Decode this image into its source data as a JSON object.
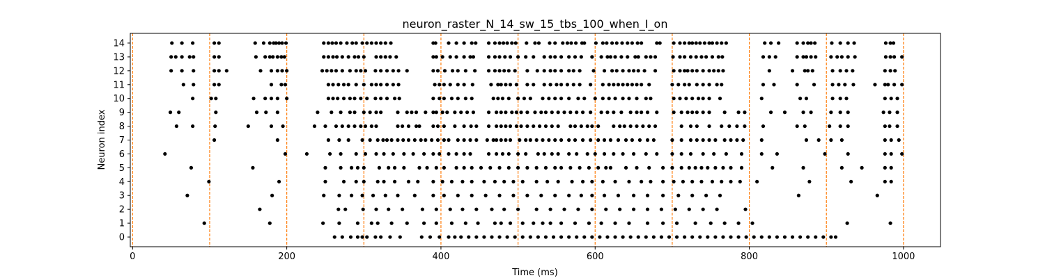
{
  "chart_data": {
    "type": "scatter",
    "title": "neuron_raster_N_14_sw_15_tbs_100_when_I_on",
    "xlabel": "Time (ms)",
    "ylabel": "Neuron index",
    "xlim": [
      -3,
      1048
    ],
    "ylim": [
      -0.7,
      14.7
    ],
    "x_ticks": [
      0,
      200,
      400,
      600,
      800,
      1000
    ],
    "y_ticks": [
      0,
      1,
      2,
      3,
      4,
      5,
      6,
      7,
      8,
      9,
      10,
      11,
      12,
      13,
      14
    ],
    "grid": false,
    "legend": "none",
    "colors": {
      "spike": "#000000",
      "marker_line": "#ff7f0e"
    },
    "vertical_markers": [
      0,
      100,
      200,
      300,
      400,
      500,
      600,
      700,
      800,
      900,
      1000
    ],
    "series": [
      {
        "neuron": 14,
        "spike_times": [
          51,
          64,
          78,
          106,
          112,
          159,
          170,
          178,
          183,
          186,
          190,
          194,
          199,
          248,
          254,
          259,
          264,
          270,
          278,
          285,
          290,
          298,
          304,
          310,
          316,
          322,
          328,
          335,
          390,
          393,
          410,
          420,
          430,
          440,
          445,
          462,
          470,
          476,
          481,
          486,
          492,
          497,
          511,
          522,
          527,
          541,
          548,
          558,
          564,
          569,
          575,
          583,
          586,
          601,
          610,
          615,
          622,
          628,
          635,
          642,
          648,
          655,
          660,
          680,
          684,
          702,
          710,
          716,
          722,
          726,
          731,
          736,
          742,
          748,
          752,
          758,
          764,
          770,
          820,
          828,
          838,
          862,
          870,
          876,
          880,
          885,
          907,
          918,
          928,
          936,
          977,
          983,
          987
        ]
      },
      {
        "neuron": 13,
        "spike_times": [
          50,
          56,
          64,
          74,
          79,
          106,
          112,
          160,
          172,
          178,
          182,
          188,
          193,
          197,
          248,
          254,
          260,
          265,
          272,
          280,
          288,
          293,
          300,
          316,
          322,
          328,
          334,
          342,
          390,
          394,
          402,
          412,
          420,
          430,
          438,
          442,
          462,
          470,
          476,
          483,
          490,
          500,
          510,
          520,
          534,
          542,
          548,
          556,
          566,
          574,
          582,
          596,
          608,
          616,
          620,
          626,
          634,
          642,
          652,
          656,
          666,
          672,
          678,
          701,
          710,
          716,
          724,
          731,
          738,
          744,
          752,
          760,
          765,
          818,
          826,
          834,
          862,
          870,
          874,
          880,
          886,
          906,
          914,
          920,
          928,
          937,
          977,
          983,
          988,
          998
        ]
      },
      {
        "neuron": 12,
        "spike_times": [
          50,
          64,
          79,
          106,
          112,
          122,
          166,
          180,
          188,
          194,
          200,
          246,
          252,
          258,
          264,
          272,
          282,
          290,
          296,
          302,
          315,
          322,
          330,
          338,
          345,
          356,
          390,
          396,
          405,
          415,
          422,
          432,
          444,
          462,
          470,
          476,
          482,
          488,
          496,
          512,
          525,
          534,
          542,
          548,
          556,
          566,
          572,
          580,
          598,
          612,
          622,
          628,
          636,
          644,
          650,
          656,
          664,
          678,
          702,
          710,
          716,
          720,
          726,
          732,
          740,
          748,
          754,
          760,
          766,
          826,
          856,
          872,
          876,
          882,
          908,
          918,
          926,
          934,
          976,
          983,
          989
        ]
      },
      {
        "neuron": 11,
        "spike_times": [
          66,
          79,
          106,
          112,
          180,
          193,
          198,
          254,
          260,
          267,
          274,
          280,
          290,
          300,
          310,
          316,
          322,
          330,
          338,
          345,
          392,
          398,
          404,
          412,
          422,
          430,
          441,
          465,
          474,
          478,
          484,
          490,
          498,
          512,
          520,
          534,
          542,
          550,
          556,
          564,
          572,
          580,
          594,
          610,
          618,
          624,
          630,
          636,
          642,
          648,
          654,
          660,
          670,
          700,
          708,
          716,
          722,
          732,
          740,
          748,
          758,
          764,
          818,
          832,
          862,
          884,
          908,
          916,
          924,
          935,
          963,
          976,
          980,
          988,
          998
        ]
      },
      {
        "neuron": 10,
        "spike_times": [
          78,
          102,
          108,
          157,
          172,
          180,
          188,
          200,
          254,
          260,
          266,
          274,
          282,
          288,
          296,
          304,
          315,
          322,
          330,
          340,
          346,
          390,
          398,
          404,
          414,
          422,
          432,
          440,
          468,
          474,
          480,
          488,
          500,
          508,
          516,
          532,
          540,
          548,
          556,
          566,
          578,
          586,
          600,
          610,
          618,
          626,
          636,
          644,
          654,
          666,
          672,
          702,
          710,
          718,
          726,
          734,
          740,
          748,
          762,
          816,
          866,
          874,
          908,
          918,
          926,
          976,
          984,
          992
        ]
      },
      {
        "neuron": 9,
        "spike_times": [
          49,
          60,
          108,
          161,
          173,
          188,
          240,
          258,
          270,
          282,
          288,
          300,
          308,
          316,
          322,
          344,
          356,
          362,
          368,
          380,
          390,
          394,
          402,
          408,
          418,
          426,
          434,
          442,
          462,
          472,
          478,
          484,
          492,
          498,
          504,
          512,
          522,
          530,
          536,
          544,
          552,
          560,
          568,
          576,
          584,
          594,
          608,
          616,
          624,
          634,
          646,
          654,
          660,
          668,
          680,
          702,
          712,
          720,
          726,
          732,
          740,
          748,
          768,
          786,
          794,
          828,
          846,
          870,
          880,
          906,
          918,
          928,
          974,
          982,
          992
        ]
      },
      {
        "neuron": 8,
        "spike_times": [
          57,
          78,
          107,
          150,
          180,
          195,
          236,
          250,
          264,
          272,
          280,
          288,
          296,
          302,
          310,
          316,
          344,
          350,
          358,
          368,
          372,
          390,
          396,
          404,
          418,
          430,
          439,
          446,
          462,
          472,
          478,
          484,
          490,
          498,
          504,
          512,
          520,
          528,
          536,
          544,
          552,
          568,
          574,
          582,
          590,
          596,
          604,
          624,
          632,
          638,
          646,
          654,
          662,
          670,
          678,
          712,
          724,
          732,
          748,
          764,
          774,
          784,
          794,
          818,
          862,
          872,
          904,
          918,
          928,
          976,
          982,
          992
        ]
      },
      {
        "neuron": 7,
        "spike_times": [
          106,
          188,
          254,
          268,
          280,
          298,
          308,
          318,
          325,
          330,
          336,
          344,
          351,
          358,
          366,
          374,
          380,
          388,
          396,
          404,
          410,
          422,
          430,
          438,
          446,
          460,
          468,
          472,
          478,
          484,
          490,
          502,
          510,
          516,
          524,
          532,
          540,
          548,
          556,
          566,
          574,
          584,
          594,
          604,
          612,
          620,
          630,
          640,
          648,
          658,
          668,
          676,
          700,
          712,
          724,
          732,
          740,
          748,
          756,
          768,
          776,
          784,
          792,
          816,
          874,
          890,
          906,
          920,
          976,
          984,
          994
        ]
      },
      {
        "neuron": 6,
        "spike_times": [
          42,
          198,
          226,
          256,
          270,
          290,
          302,
          316,
          326,
          338,
          352,
          364,
          378,
          390,
          398,
          410,
          420,
          430,
          438,
          462,
          472,
          480,
          488,
          500,
          510,
          526,
          534,
          544,
          552,
          566,
          576,
          590,
          600,
          612,
          624,
          636,
          650,
          666,
          680,
          700,
          712,
          724,
          740,
          754,
          770,
          790,
          816,
          836,
          898,
          928,
          976,
          984,
          998
        ]
      },
      {
        "neuron": 5,
        "spike_times": [
          76,
          156,
          250,
          270,
          284,
          292,
          300,
          320,
          332,
          340,
          352,
          372,
          382,
          394,
          404,
          420,
          430,
          440,
          452,
          464,
          476,
          488,
          500,
          512,
          524,
          536,
          548,
          556,
          568,
          580,
          592,
          604,
          614,
          620,
          640,
          654,
          670,
          688,
          700,
          712,
          722,
          730,
          738,
          746,
          756,
          766,
          776,
          790,
          830,
          870,
          920,
          946,
          976,
          984
        ]
      },
      {
        "neuron": 4,
        "spike_times": [
          99,
          190,
          250,
          274,
          290,
          300,
          318,
          326,
          340,
          358,
          370,
          390,
          402,
          414,
          428,
          440,
          456,
          470,
          482,
          494,
          506,
          524,
          538,
          552,
          570,
          584,
          596,
          610,
          626,
          644,
          660,
          672,
          688,
          702,
          714,
          726,
          738,
          752,
          764,
          776,
          788,
          810,
          878,
          932,
          976,
          984
        ]
      },
      {
        "neuron": 3,
        "spike_times": [
          71,
          181,
          248,
          268,
          284,
          298,
          312,
          328,
          344,
          366,
          390,
          404,
          422,
          440,
          458,
          476,
          494,
          512,
          530,
          548,
          566,
          582,
          596,
          612,
          630,
          650,
          668,
          688,
          708,
          726,
          744,
          762,
          864,
          966
        ]
      },
      {
        "neuron": 2,
        "spike_times": [
          165,
          267,
          276,
          299,
          316,
          332,
          350,
          376,
          394,
          412,
          428,
          446,
          466,
          482,
          500,
          524,
          542,
          560,
          578,
          596,
          614,
          632,
          650,
          668,
          686,
          704,
          722,
          740,
          758,
          795
        ]
      },
      {
        "neuron": 1,
        "spike_times": [
          93,
          178,
          247,
          268,
          292,
          310,
          318,
          336,
          356,
          378,
          394,
          414,
          432,
          448,
          470,
          478,
          490,
          506,
          520,
          532,
          542,
          556,
          574,
          592,
          608,
          626,
          644,
          668,
          688,
          706,
          730,
          750,
          768,
          786,
          804,
          927,
          983
        ]
      },
      {
        "neuron": 0,
        "spike_times": [
          262,
          272,
          283,
          292,
          298,
          304,
          315,
          322,
          334,
          347,
          375,
          386,
          398,
          410,
          418,
          426,
          436,
          446,
          456,
          466,
          476,
          486,
          496,
          506,
          516,
          526,
          536,
          546,
          556,
          566,
          576,
          586,
          596,
          606,
          616,
          626,
          636,
          646,
          656,
          666,
          676,
          686,
          696,
          706,
          716,
          726,
          736,
          746,
          756,
          766,
          776,
          786,
          796,
          806,
          816,
          826,
          836,
          846,
          856,
          866,
          876,
          886,
          896,
          906,
          912
        ]
      }
    ]
  }
}
